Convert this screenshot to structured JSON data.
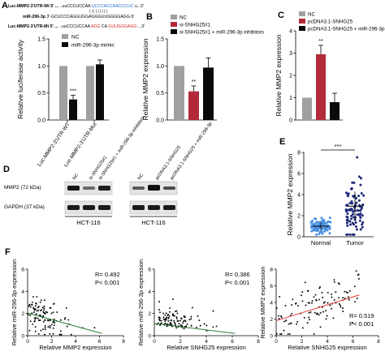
{
  "panel_labels": {
    "a": "A",
    "b": "B",
    "c": "C",
    "d": "D",
    "e": "E",
    "f": "F"
  },
  "colors": {
    "nc": "#a0a0a0",
    "ctrl": "#a0a0a0",
    "treat1": "#b22a3a",
    "treat2": "#0a0a0a",
    "dots": "#1f2a7a",
    "fit_green": "#2e7d32",
    "fit_red": "#e53935",
    "blue_seq": "#2a6fd6",
    "red_seq": "#d62828"
  },
  "panel_a": {
    "seq1_label": "Luc-MMP2-3'UTR-Wt 5' ...",
    "seq1_plain": "..uuCCCUCCAA",
    "seq1_blue": "UCCCACCAACCCUC",
    "seq1_end": "u...3'",
    "bars_marks": "| | | | | | | | |",
    "seq2_label": "miR-296-3p",
    "seq2": "3'-GCUCCCAGGUGGAGGGUUGGGGAGG-5'",
    "seq3_label": "Luc-MMP2-3'UTR-Mt 5' ...",
    "seq3_plain": "..uuCCCUCCAA",
    "seq3_red1": "AGG",
    "seq3_mid": "CA",
    "seq3_red2": "GUUGGGAGG",
    "seq3_end": "...3'"
  },
  "chart_data": [
    {
      "panel": "A",
      "type": "bar",
      "ylabel": "Relative luciferase activity",
      "ylim": [
        0,
        1.5
      ],
      "yticks": [
        "0.0",
        "0.5",
        "1.0",
        "1.5"
      ],
      "categories": [
        "Luc-MMP2-3'UTR-WT",
        "Luc-MMP2-3'UTR-Mut"
      ],
      "series": [
        {
          "name": "NC",
          "values": [
            1.0,
            1.0
          ],
          "errors": [
            0,
            0
          ]
        },
        {
          "name": "miR-296-3p mimic",
          "values": [
            0.38,
            1.03
          ],
          "errors": [
            0.08,
            0.08
          ]
        }
      ],
      "annotations": [
        {
          "category": 0,
          "series": 1,
          "text": "***"
        }
      ]
    },
    {
      "panel": "B",
      "type": "bar",
      "ylabel": "Relative MMP2 expression",
      "ylim": [
        0,
        1.5
      ],
      "yticks": [
        "0.0",
        "0.5",
        "1.0",
        "1.5"
      ],
      "legend": [
        "NC",
        "si-SNHG25#1",
        "si-SNHG25#1 + miR-296-3p inhibitors"
      ],
      "values": [
        1.0,
        0.53,
        0.97
      ],
      "errors": [
        0,
        0.1,
        0.18
      ],
      "annotations": [
        {
          "index": 1,
          "text": "**"
        }
      ]
    },
    {
      "panel": "C",
      "type": "bar",
      "ylabel": "Relative MMP2 expression",
      "ylim": [
        0,
        4
      ],
      "yticks": [
        "0",
        "1",
        "2",
        "3",
        "4"
      ],
      "legend": [
        "NC",
        "pcDNA3.1-SNHG25",
        "pcDNA3.1-SNHG25 + miR-296-3p"
      ],
      "values": [
        1.0,
        2.95,
        0.8
      ],
      "errors": [
        0,
        0.4,
        0.4
      ],
      "annotations": [
        {
          "index": 1,
          "text": "**"
        }
      ]
    },
    {
      "panel": "E",
      "type": "scatter",
      "ylabel": "Relative MMP2 expression",
      "ylim": [
        0,
        8
      ],
      "yticks": [
        "0",
        "2",
        "4",
        "6",
        "8"
      ],
      "categories": [
        "Normal",
        "Tumor"
      ],
      "series": [
        {
          "name": "Normal",
          "mean": 1.0,
          "sd": 0.35
        },
        {
          "name": "Tumor",
          "mean": 2.9,
          "sd": 1.4
        }
      ],
      "annotations": [
        {
          "text": "***"
        }
      ]
    },
    {
      "panel": "F1",
      "type": "scatter",
      "xlabel": "Relative MMP2 expression",
      "ylabel": "Relative miR-296-3p expression",
      "xlim": [
        0,
        8
      ],
      "ylim": [
        0,
        6
      ],
      "xticks": [
        "0",
        "2",
        "4",
        "6",
        "8"
      ],
      "yticks": [
        "0",
        "2",
        "4",
        "6"
      ],
      "stats": [
        "R= 0.492",
        "P< 0.001"
      ],
      "fit": {
        "x0": 0,
        "y0": 2.05,
        "x1": 6.2,
        "y1": 0.2
      }
    },
    {
      "panel": "F2",
      "type": "scatter",
      "xlabel": "Relative SNHG25 expression",
      "ylabel": "Relative miR-296-3p expression",
      "xlim": [
        0,
        8
      ],
      "ylim": [
        0,
        6
      ],
      "xticks": [
        "0",
        "2",
        "4",
        "6",
        "8"
      ],
      "yticks": [
        "0",
        "2",
        "4",
        "6"
      ],
      "stats": [
        "R= 0.386",
        "P< 0.001"
      ],
      "fit": {
        "x0": 0,
        "y0": 1.1,
        "x1": 6.2,
        "y1": 0.2
      }
    },
    {
      "panel": "F3",
      "type": "scatter",
      "xlabel": "Relative SNHG25 expression",
      "ylabel": "Relative MMP2 expression",
      "xlim": [
        0,
        8
      ],
      "ylim": [
        0,
        8
      ],
      "xticks": [
        "0",
        "2",
        "4",
        "6",
        "8"
      ],
      "yticks": [
        "0",
        "2",
        "4",
        "6",
        "8"
      ],
      "stats": [
        "R= 0.519",
        "P< 0.001"
      ],
      "fit": {
        "x0": 0,
        "y0": 1.8,
        "x1": 6.5,
        "y1": 4.9
      }
    }
  ],
  "panel_d": {
    "lanes_left": [
      "NC",
      "si-SNHG25#1",
      "si-SNHG25#1 + miR-296-3p inhibitors"
    ],
    "lanes_right": [
      "NC",
      "pcDNA3.1-SNHG25",
      "pcDNA3.1-SNHG25 + miR-296-3p"
    ],
    "rows": [
      "MMP2 (72 kDa)",
      "GAPDH (37 kDa)"
    ],
    "cell_line_left": "HCT-116",
    "cell_line_right": "HCT-116"
  }
}
